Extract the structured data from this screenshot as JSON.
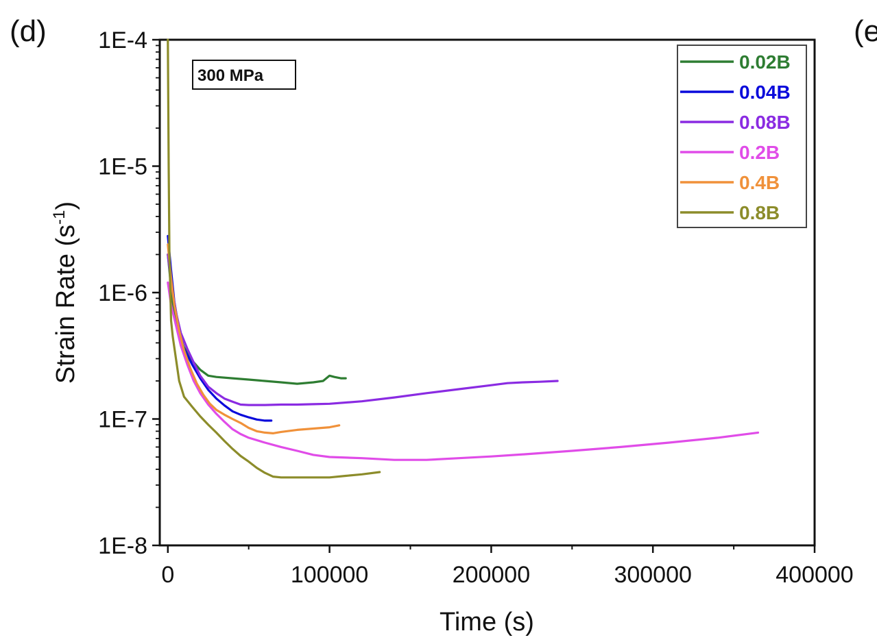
{
  "panel_label": "(d)",
  "next_panel_label": "(e",
  "chart_data": {
    "type": "line",
    "title": "",
    "xlabel": "Time (s)",
    "ylabel": "Strain Rate (s-1)",
    "ylabel_main": "Strain Rate (s",
    "ylabel_sup": "-1",
    "ylabel_close": ")",
    "xlim": [
      -5000,
      400000
    ],
    "ylim": [
      1e-08,
      0.0001
    ],
    "yscale": "log",
    "x_ticks": [
      0,
      100000,
      200000,
      300000,
      400000
    ],
    "x_tick_labels": [
      "0",
      "100000",
      "200000",
      "300000",
      "400000"
    ],
    "y_ticks": [
      1e-08,
      1e-07,
      1e-06,
      1e-05,
      0.0001
    ],
    "y_tick_labels": [
      "1E-8",
      "1E-7",
      "1E-6",
      "1E-5",
      "1E-4"
    ],
    "grid": false,
    "legend_position": "top-right",
    "annotation": "300 MPa",
    "series": [
      {
        "name": "0.02B",
        "color": "#2e7d32",
        "x": [
          0,
          3000,
          6000,
          10000,
          15000,
          20000,
          25000,
          30000,
          40000,
          50000,
          60000,
          70000,
          80000,
          90000,
          96000,
          100000,
          103000,
          107000,
          110000
        ],
        "y": [
          2e-06,
          8e-07,
          5e-07,
          3.7e-07,
          2.9e-07,
          2.45e-07,
          2.2e-07,
          2.15e-07,
          2.1e-07,
          2.05e-07,
          2e-07,
          1.95e-07,
          1.9e-07,
          1.95e-07,
          2e-07,
          2.2e-07,
          2.15e-07,
          2.1e-07,
          2.1e-07
        ]
      },
      {
        "name": "0.04B",
        "color": "#0a0adb",
        "x": [
          0,
          2000,
          4000,
          7000,
          10000,
          15000,
          20000,
          25000,
          30000,
          35000,
          40000,
          45000,
          50000,
          55000,
          60000,
          64000
        ],
        "y": [
          2.8e-06,
          1.5e-06,
          8.5e-07,
          5e-07,
          3.6e-07,
          2.7e-07,
          2.1e-07,
          1.7e-07,
          1.45e-07,
          1.28e-07,
          1.15e-07,
          1.08e-07,
          1.03e-07,
          9.9e-08,
          9.7e-08,
          9.7e-08
        ]
      },
      {
        "name": "0.08B",
        "color": "#8a2be2",
        "x": [
          0,
          2000,
          5000,
          8000,
          12000,
          16000,
          20000,
          25000,
          30000,
          35000,
          40000,
          45000,
          50000,
          60000,
          70000,
          80000,
          90000,
          100000,
          120000,
          140000,
          160000,
          180000,
          200000,
          210000,
          220000,
          230000,
          241000
        ],
        "y": [
          2e-06,
          1.2e-06,
          7e-07,
          4.8e-07,
          3.6e-07,
          2.8e-07,
          2.2e-07,
          1.8e-07,
          1.6e-07,
          1.45e-07,
          1.37e-07,
          1.3e-07,
          1.29e-07,
          1.29e-07,
          1.3e-07,
          1.3e-07,
          1.31e-07,
          1.32e-07,
          1.38e-07,
          1.48e-07,
          1.6e-07,
          1.72e-07,
          1.85e-07,
          1.92e-07,
          1.95e-07,
          1.97e-07,
          2e-07
        ]
      },
      {
        "name": "0.2B",
        "color": "#e04ce8",
        "x": [
          0,
          2000,
          5000,
          8000,
          12000,
          16000,
          20000,
          25000,
          30000,
          35000,
          40000,
          45000,
          50000,
          60000,
          70000,
          80000,
          90000,
          100000,
          120000,
          140000,
          160000,
          180000,
          200000,
          220000,
          250000,
          280000,
          310000,
          340000,
          365000
        ],
        "y": [
          1.2e-06,
          8e-07,
          5.5e-07,
          3.8e-07,
          2.7e-07,
          2e-07,
          1.6e-07,
          1.3e-07,
          1.1e-07,
          9.5e-08,
          8.3e-08,
          7.6e-08,
          7.1e-08,
          6.5e-08,
          6e-08,
          5.6e-08,
          5.2e-08,
          5e-08,
          4.9e-08,
          4.75e-08,
          4.75e-08,
          4.9e-08,
          5.05e-08,
          5.25e-08,
          5.6e-08,
          6e-08,
          6.5e-08,
          7.1e-08,
          7.8e-08
        ]
      },
      {
        "name": "0.4B",
        "color": "#f0913a",
        "x": [
          0,
          2000,
          4000,
          7000,
          10000,
          14000,
          18000,
          22000,
          26000,
          30000,
          35000,
          40000,
          45000,
          50000,
          55000,
          60000,
          65000,
          70000,
          80000,
          90000,
          100000,
          106000
        ],
        "y": [
          2.4e-06,
          1.3e-06,
          8e-07,
          5e-07,
          3.5e-07,
          2.5e-07,
          1.9e-07,
          1.55e-07,
          1.32e-07,
          1.18e-07,
          1.08e-07,
          1e-07,
          9.3e-08,
          8.5e-08,
          8e-08,
          7.8e-08,
          7.7e-08,
          7.9e-08,
          8.2e-08,
          8.4e-08,
          8.6e-08,
          8.9e-08
        ]
      },
      {
        "name": "0.8B",
        "color": "#8c8c2a",
        "x": [
          0,
          500,
          1000,
          2000,
          3000,
          5000,
          7000,
          10000,
          15000,
          20000,
          25000,
          30000,
          35000,
          40000,
          45000,
          50000,
          55000,
          60000,
          65000,
          70000,
          80000,
          90000,
          100000,
          110000,
          120000,
          131000
        ],
        "y": [
          0.0001,
          1e-05,
          2e-06,
          6e-07,
          4.5e-07,
          3e-07,
          2e-07,
          1.5e-07,
          1.25e-07,
          1.05e-07,
          9e-08,
          7.8e-08,
          6.7e-08,
          5.8e-08,
          5.1e-08,
          4.6e-08,
          4.1e-08,
          3.75e-08,
          3.5e-08,
          3.45e-08,
          3.45e-08,
          3.45e-08,
          3.45e-08,
          3.55e-08,
          3.65e-08,
          3.8e-08
        ]
      }
    ]
  }
}
